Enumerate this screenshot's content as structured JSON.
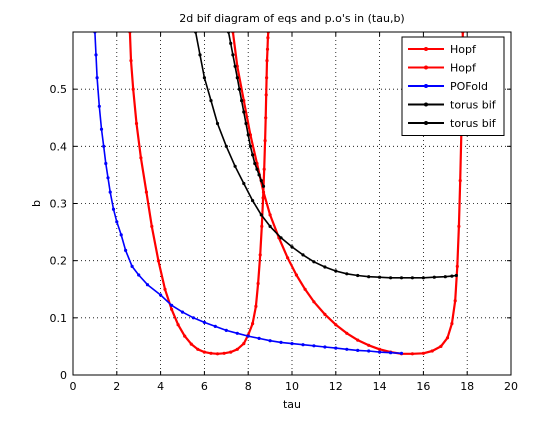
{
  "chart_data": {
    "type": "line",
    "title": "2d bif diagram of eqs and p.o's in (tau,b)",
    "xlabel": "tau",
    "ylabel": "b",
    "xlim": [
      0,
      20
    ],
    "ylim": [
      0,
      0.6
    ],
    "xticks": [
      0,
      2,
      4,
      6,
      8,
      10,
      12,
      14,
      16,
      18,
      20
    ],
    "xtick_labels": [
      "0",
      "2",
      "4",
      "6",
      "8",
      "10",
      "12",
      "14",
      "16",
      "18",
      "20"
    ],
    "yticks": [
      0,
      0.1,
      0.2,
      0.3,
      0.4,
      0.5
    ],
    "ytick_labels": [
      "0",
      "0.1",
      "0.2",
      "0.3",
      "0.4",
      "0.5"
    ],
    "grid": true,
    "grid_style": "dotted",
    "legend_position": "top-right",
    "series": [
      {
        "name": "Hopf",
        "color": "#ff0000",
        "x": [
          2.6,
          2.65,
          2.75,
          2.9,
          3.1,
          3.35,
          3.6,
          3.9,
          4.2,
          4.5,
          4.8,
          5.1,
          5.4,
          5.7,
          6.0,
          6.3,
          6.6,
          6.9,
          7.2,
          7.5,
          7.8,
          8.0,
          8.2,
          8.35,
          8.45,
          8.55,
          8.62,
          8.68,
          8.73,
          8.77,
          8.8,
          8.82,
          8.84,
          8.86,
          8.88,
          8.9,
          8.92
        ],
        "y": [
          0.6,
          0.55,
          0.5,
          0.44,
          0.38,
          0.32,
          0.26,
          0.2,
          0.15,
          0.115,
          0.088,
          0.068,
          0.054,
          0.045,
          0.04,
          0.038,
          0.037,
          0.038,
          0.04,
          0.045,
          0.055,
          0.07,
          0.09,
          0.12,
          0.16,
          0.21,
          0.26,
          0.31,
          0.36,
          0.41,
          0.45,
          0.49,
          0.52,
          0.55,
          0.57,
          0.59,
          0.6
        ]
      },
      {
        "name": "Hopf",
        "color": "#ff0000",
        "x": [
          7.3,
          7.5,
          7.8,
          8.1,
          8.4,
          8.7,
          9.0,
          9.4,
          9.8,
          10.2,
          10.6,
          11.0,
          11.5,
          12.0,
          12.5,
          13.0,
          13.5,
          14.0,
          14.5,
          15.0,
          15.5,
          16.0,
          16.4,
          16.8,
          17.1,
          17.3,
          17.45,
          17.55,
          17.62,
          17.68,
          17.73,
          17.77,
          17.8
        ],
        "y": [
          0.6,
          0.54,
          0.48,
          0.42,
          0.37,
          0.32,
          0.28,
          0.24,
          0.205,
          0.175,
          0.15,
          0.128,
          0.106,
          0.088,
          0.073,
          0.061,
          0.052,
          0.045,
          0.04,
          0.037,
          0.037,
          0.038,
          0.042,
          0.05,
          0.065,
          0.09,
          0.13,
          0.19,
          0.26,
          0.34,
          0.42,
          0.5,
          0.6
        ]
      },
      {
        "name": "POFold",
        "color": "#0000ff",
        "x": [
          1.0,
          1.05,
          1.1,
          1.2,
          1.3,
          1.4,
          1.5,
          1.6,
          1.7,
          1.85,
          2.0,
          2.2,
          2.4,
          2.7,
          3.0,
          3.4,
          4.0,
          4.5,
          5.0,
          5.5,
          6.0,
          6.5,
          7.0,
          7.5,
          8.0,
          8.5,
          9.0,
          9.5,
          10.0,
          10.5,
          11.0,
          11.5,
          12.0,
          12.5,
          13.0,
          13.5,
          14.0,
          14.5,
          15.0
        ],
        "y": [
          0.6,
          0.56,
          0.52,
          0.47,
          0.43,
          0.4,
          0.37,
          0.345,
          0.32,
          0.29,
          0.268,
          0.245,
          0.218,
          0.19,
          0.175,
          0.158,
          0.14,
          0.122,
          0.11,
          0.1,
          0.092,
          0.085,
          0.078,
          0.073,
          0.068,
          0.064,
          0.06,
          0.057,
          0.055,
          0.053,
          0.051,
          0.049,
          0.047,
          0.045,
          0.043,
          0.042,
          0.04,
          0.039,
          0.038
        ]
      },
      {
        "name": "torus bif",
        "color": "#000000",
        "x": [
          5.6,
          5.8,
          6.0,
          6.3,
          6.6,
          7.0,
          7.4,
          7.8,
          8.2,
          8.6,
          9.0,
          9.5,
          10.0,
          10.5,
          11.0,
          11.5,
          12.0,
          12.5,
          13.0,
          13.5,
          14.0,
          14.5,
          15.0,
          15.5,
          16.0,
          16.5,
          17.0,
          17.3,
          17.5
        ],
        "y": [
          0.6,
          0.56,
          0.52,
          0.48,
          0.44,
          0.4,
          0.365,
          0.335,
          0.305,
          0.28,
          0.26,
          0.24,
          0.224,
          0.21,
          0.198,
          0.189,
          0.182,
          0.177,
          0.174,
          0.172,
          0.171,
          0.17,
          0.17,
          0.17,
          0.17,
          0.171,
          0.172,
          0.173,
          0.174
        ]
      },
      {
        "name": "torus bif",
        "color": "#000000",
        "x": [
          7.1,
          7.2,
          7.3,
          7.4,
          7.5,
          7.6,
          7.7,
          7.8,
          7.9,
          8.0,
          8.1,
          8.2,
          8.3,
          8.4,
          8.5,
          8.6,
          8.7
        ],
        "y": [
          0.6,
          0.58,
          0.56,
          0.54,
          0.52,
          0.5,
          0.48,
          0.46,
          0.44,
          0.42,
          0.4,
          0.385,
          0.37,
          0.36,
          0.35,
          0.34,
          0.33
        ]
      }
    ]
  }
}
